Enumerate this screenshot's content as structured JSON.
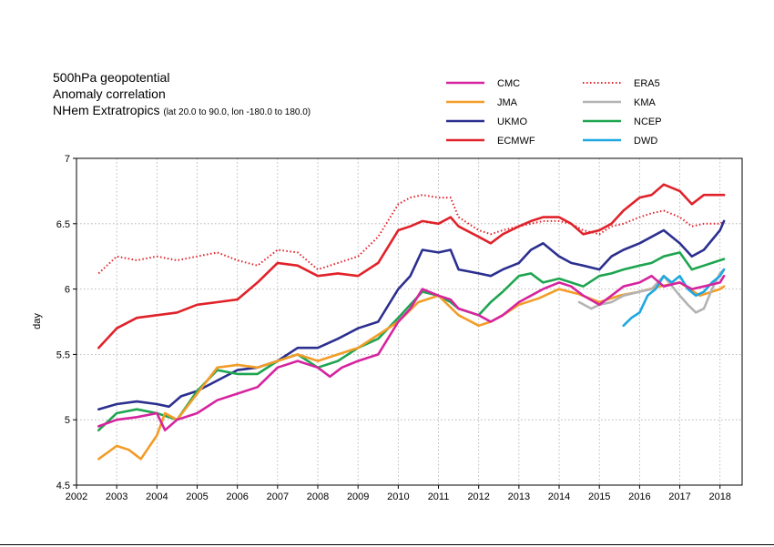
{
  "chart_data": {
    "type": "line",
    "title_lines": [
      "500hPa geopotential",
      "Anomaly correlation",
      "NHem Extratropics"
    ],
    "subtitle_small": "(lat  20.0 to 90.0, lon  -180.0 to  180.0)",
    "ylabel": "day",
    "xlabel": "",
    "xlim": [
      2002,
      2018.55
    ],
    "ylim": [
      4.5,
      7
    ],
    "x_ticks": [
      "2002",
      "2003",
      "2004",
      "2005",
      "2006",
      "2007",
      "2008",
      "2009",
      "2010",
      "2011",
      "2012",
      "2013",
      "2014",
      "2015",
      "2016",
      "2017",
      "2018"
    ],
    "y_ticks": [
      "4.5",
      "5",
      "5.5",
      "6",
      "6.5",
      "7"
    ],
    "grid": true,
    "legend_placement": "top-right",
    "series": [
      {
        "name": "CMC",
        "color": "#d6249f",
        "style": "solid",
        "x": [
          2002.55,
          2003,
          2003.5,
          2004,
          2004.2,
          2004.5,
          2005,
          2005.5,
          2006,
          2006.5,
          2007,
          2007.5,
          2008,
          2008.3,
          2008.6,
          2009,
          2009.5,
          2010,
          2010.3,
          2010.6,
          2011,
          2011.3,
          2011.5,
          2012,
          2012.3,
          2012.6,
          2013,
          2013.3,
          2013.6,
          2014,
          2014.3,
          2014.6,
          2015,
          2015.3,
          2015.6,
          2016,
          2016.3,
          2016.6,
          2017,
          2017.3,
          2017.6,
          2018,
          2018.1
        ],
        "y": [
          4.95,
          5.0,
          5.02,
          5.05,
          4.92,
          5.0,
          5.05,
          5.15,
          5.2,
          5.25,
          5.4,
          5.45,
          5.4,
          5.33,
          5.4,
          5.45,
          5.5,
          5.75,
          5.85,
          6.0,
          5.95,
          5.92,
          5.85,
          5.8,
          5.75,
          5.8,
          5.9,
          5.95,
          6.0,
          6.05,
          6.02,
          5.95,
          5.88,
          5.95,
          6.02,
          6.05,
          6.1,
          6.02,
          6.05,
          6.0,
          6.02,
          6.05,
          6.1
        ]
      },
      {
        "name": "JMA",
        "color": "#f39c27",
        "style": "solid",
        "x": [
          2002.55,
          2003,
          2003.3,
          2003.6,
          2004,
          2004.2,
          2004.5,
          2005,
          2005.5,
          2006,
          2006.5,
          2007,
          2007.5,
          2008,
          2008.5,
          2009,
          2009.5,
          2010,
          2010.5,
          2011,
          2011.5,
          2012,
          2012.3,
          2012.6,
          2013,
          2013.5,
          2014,
          2014.5,
          2015,
          2015.5,
          2016,
          2016.5,
          2017,
          2017.5,
          2018,
          2018.1
        ],
        "y": [
          4.7,
          4.8,
          4.77,
          4.7,
          4.88,
          5.05,
          5.0,
          5.2,
          5.4,
          5.42,
          5.4,
          5.45,
          5.5,
          5.45,
          5.5,
          5.55,
          5.65,
          5.75,
          5.9,
          5.95,
          5.8,
          5.72,
          5.75,
          5.8,
          5.88,
          5.93,
          6.0,
          5.96,
          5.9,
          5.95,
          5.98,
          6.02,
          6.05,
          5.95,
          6.0,
          6.02
        ]
      },
      {
        "name": "UKMO",
        "color": "#2b2f8f",
        "style": "solid",
        "x": [
          2002.55,
          2003,
          2003.5,
          2004,
          2004.3,
          2004.6,
          2005,
          2005.5,
          2006,
          2006.5,
          2007,
          2007.5,
          2008,
          2008.5,
          2009,
          2009.5,
          2010,
          2010.3,
          2010.6,
          2011,
          2011.3,
          2011.5,
          2012,
          2012.3,
          2012.6,
          2013,
          2013.3,
          2013.6,
          2014,
          2014.3,
          2014.6,
          2015,
          2015.3,
          2015.6,
          2016,
          2016.3,
          2016.6,
          2017,
          2017.3,
          2017.6,
          2018,
          2018.1
        ],
        "y": [
          5.08,
          5.12,
          5.14,
          5.12,
          5.1,
          5.18,
          5.22,
          5.3,
          5.38,
          5.4,
          5.45,
          5.55,
          5.55,
          5.62,
          5.7,
          5.75,
          6.0,
          6.1,
          6.3,
          6.28,
          6.3,
          6.15,
          6.12,
          6.1,
          6.15,
          6.2,
          6.3,
          6.35,
          6.25,
          6.2,
          6.18,
          6.15,
          6.25,
          6.3,
          6.35,
          6.4,
          6.45,
          6.35,
          6.25,
          6.3,
          6.45,
          6.52
        ]
      },
      {
        "name": "ECMWF",
        "color": "#e0222a",
        "style": "solid",
        "x": [
          2002.55,
          2003,
          2003.5,
          2004,
          2004.5,
          2005,
          2005.5,
          2006,
          2006.5,
          2007,
          2007.5,
          2008,
          2008.5,
          2009,
          2009.5,
          2010,
          2010.3,
          2010.6,
          2011,
          2011.3,
          2011.5,
          2012,
          2012.3,
          2012.6,
          2013,
          2013.3,
          2013.6,
          2014,
          2014.3,
          2014.6,
          2015,
          2015.3,
          2015.6,
          2016,
          2016.3,
          2016.6,
          2017,
          2017.3,
          2017.6,
          2018,
          2018.1
        ],
        "y": [
          5.55,
          5.7,
          5.78,
          5.8,
          5.82,
          5.88,
          5.9,
          5.92,
          6.05,
          6.2,
          6.18,
          6.1,
          6.12,
          6.1,
          6.2,
          6.45,
          6.48,
          6.52,
          6.5,
          6.55,
          6.48,
          6.4,
          6.35,
          6.42,
          6.48,
          6.52,
          6.55,
          6.55,
          6.5,
          6.42,
          6.45,
          6.5,
          6.6,
          6.7,
          6.72,
          6.8,
          6.75,
          6.65,
          6.72,
          6.72,
          6.72
        ]
      },
      {
        "name": "ERA5",
        "color": "#e0222a",
        "style": "dotted",
        "x": [
          2002.55,
          2003,
          2003.5,
          2004,
          2004.5,
          2005,
          2005.5,
          2006,
          2006.5,
          2007,
          2007.5,
          2008,
          2008.5,
          2009,
          2009.5,
          2010,
          2010.3,
          2010.6,
          2011,
          2011.3,
          2011.5,
          2012,
          2012.3,
          2012.6,
          2013,
          2013.3,
          2013.6,
          2014,
          2014.3,
          2014.6,
          2015,
          2015.3,
          2015.6,
          2016,
          2016.3,
          2016.6,
          2017,
          2017.3,
          2017.6,
          2018,
          2018.1
        ],
        "y": [
          6.12,
          6.25,
          6.22,
          6.25,
          6.22,
          6.25,
          6.28,
          6.22,
          6.18,
          6.3,
          6.28,
          6.15,
          6.2,
          6.25,
          6.4,
          6.65,
          6.7,
          6.72,
          6.7,
          6.7,
          6.55,
          6.45,
          6.42,
          6.45,
          6.48,
          6.5,
          6.52,
          6.52,
          6.5,
          6.45,
          6.42,
          6.48,
          6.5,
          6.55,
          6.58,
          6.6,
          6.55,
          6.48,
          6.5,
          6.5,
          6.52
        ]
      },
      {
        "name": "KMA",
        "color": "#b3b3b3",
        "style": "solid",
        "x": [
          2014.5,
          2014.8,
          2015,
          2015.3,
          2015.6,
          2016,
          2016.3,
          2016.6,
          2017,
          2017.2,
          2017.4,
          2017.6,
          2017.8,
          2018,
          2018.1
        ],
        "y": [
          5.9,
          5.85,
          5.88,
          5.9,
          5.95,
          5.98,
          6.0,
          6.1,
          5.95,
          5.88,
          5.82,
          5.85,
          6.0,
          6.12,
          6.15
        ]
      },
      {
        "name": "NCEP",
        "color": "#1ea550",
        "style": "solid",
        "x": [
          2002.55,
          2003,
          2003.5,
          2004,
          2004.5,
          2005,
          2005.5,
          2006,
          2006.5,
          2007,
          2007.5,
          2008,
          2008.5,
          2009,
          2009.5,
          2010,
          2010.3,
          2010.6,
          2011,
          2011.3,
          2011.5,
          2012,
          2012.3,
          2012.6,
          2013,
          2013.3,
          2013.6,
          2014,
          2014.3,
          2014.6,
          2015,
          2015.3,
          2015.6,
          2016,
          2016.3,
          2016.6,
          2017,
          2017.3,
          2017.6,
          2018,
          2018.1
        ],
        "y": [
          4.92,
          5.05,
          5.08,
          5.05,
          5.0,
          5.22,
          5.38,
          5.35,
          5.35,
          5.45,
          5.5,
          5.4,
          5.45,
          5.55,
          5.62,
          5.78,
          5.88,
          5.98,
          5.95,
          5.9,
          5.85,
          5.8,
          5.9,
          5.98,
          6.1,
          6.12,
          6.05,
          6.08,
          6.05,
          6.02,
          6.1,
          6.12,
          6.15,
          6.18,
          6.2,
          6.25,
          6.28,
          6.15,
          6.18,
          6.22,
          6.23
        ]
      },
      {
        "name": "DWD",
        "color": "#1ea7e1",
        "style": "solid",
        "x": [
          2015.6,
          2015.8,
          2016,
          2016.2,
          2016.4,
          2016.6,
          2016.8,
          2017,
          2017.2,
          2017.4,
          2017.6,
          2017.8,
          2018,
          2018.1
        ],
        "y": [
          5.72,
          5.78,
          5.82,
          5.95,
          6.0,
          6.1,
          6.05,
          6.1,
          6.0,
          5.95,
          5.98,
          6.05,
          6.1,
          6.15
        ]
      }
    ]
  }
}
